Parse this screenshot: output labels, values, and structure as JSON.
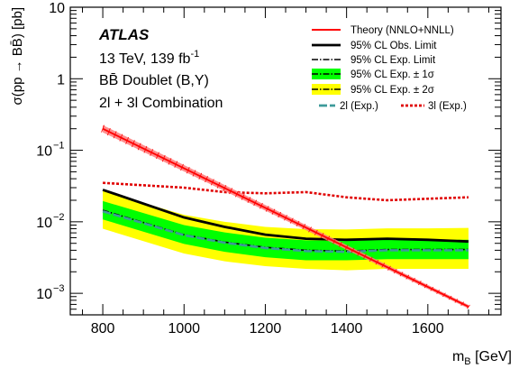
{
  "chart_data": {
    "type": "line",
    "log_y": true,
    "xlim": [
      720,
      1780
    ],
    "ylim": [
      0.0005,
      10
    ],
    "x_ticks": [
      800,
      1000,
      1200,
      1400,
      1600
    ],
    "x_tick_labels": [
      "800",
      "1000",
      "1200",
      "1400",
      "1600"
    ],
    "y_ticks": [
      0.001,
      0.01,
      0.1,
      1,
      10
    ],
    "y_tick_labels": [
      {
        "base": "10",
        "exp": "−3"
      },
      {
        "base": "10",
        "exp": "−2"
      },
      {
        "base": "10",
        "exp": "−1"
      },
      {
        "base": "1",
        "exp": ""
      },
      {
        "base": "10",
        "exp": ""
      }
    ],
    "xlabel": {
      "main": "m",
      "sub": "B",
      "unit": " [GeV]"
    },
    "ylabel": "σ(pp → BB̄) [pb]",
    "annotations": {
      "experiment": "ATLAS",
      "energy": "13 TeV, 139 fb",
      "energy_sup": "-1",
      "model": "BB̄ Doublet (B,Y)",
      "channel": "2l + 3l Combination"
    },
    "legend_placement": "top-right",
    "legend": [
      {
        "key": "theory",
        "label": "Theory (NNLO+NNLL)"
      },
      {
        "key": "obs",
        "label": "95% CL Obs. Limit"
      },
      {
        "key": "exp",
        "label": "95% CL Exp. Limit"
      },
      {
        "key": "band1",
        "label": "95% CL Exp. ± 1σ"
      },
      {
        "key": "band2",
        "label": "95% CL Exp. ± 2σ"
      },
      {
        "key": "exp2l",
        "label": "2l (Exp.)"
      },
      {
        "key": "exp3l",
        "label": "3l (Exp.)"
      }
    ],
    "x": [
      800,
      1000,
      1100,
      1200,
      1300,
      1400,
      1500,
      1600,
      1700
    ],
    "theory": {
      "x": [
        800,
        1700
      ],
      "values": [
        0.2,
        0.00065
      ],
      "color": "#ff0000"
    },
    "obs": [
      0.028,
      0.0115,
      0.0085,
      0.0066,
      0.0058,
      0.0056,
      0.0058,
      0.0056,
      0.0053
    ],
    "exp": [
      0.0145,
      0.0066,
      0.0052,
      0.0044,
      0.004,
      0.0039,
      0.0041,
      0.0041,
      0.0041
    ],
    "band1_lo": [
      0.0108,
      0.0049,
      0.0038,
      0.0032,
      0.0029,
      0.0029,
      0.003,
      0.003,
      0.003
    ],
    "band1_hi": [
      0.0195,
      0.009,
      0.0071,
      0.006,
      0.0055,
      0.0054,
      0.0056,
      0.0056,
      0.0056
    ],
    "band2_lo": [
      0.008,
      0.0036,
      0.0028,
      0.0024,
      0.0022,
      0.0021,
      0.0022,
      0.0022,
      0.0022
    ],
    "band2_hi": [
      0.027,
      0.0125,
      0.01,
      0.0085,
      0.0079,
      0.0078,
      0.0081,
      0.0081,
      0.0082
    ],
    "exp2l": [
      0.014,
      0.0065,
      0.0051,
      0.0043,
      0.0039,
      0.0038,
      0.004,
      0.004,
      0.004
    ],
    "exp3l": [
      0.035,
      0.03,
      0.026,
      0.025,
      0.026,
      0.022,
      0.02,
      0.021,
      0.022
    ],
    "colors": {
      "theory": "#ff0000",
      "obs": "#000000",
      "exp": "#000000",
      "band1": "#00ff00",
      "band2": "#ffff00",
      "exp2l": "#3d9a9a",
      "exp3l": "#e00000"
    }
  }
}
